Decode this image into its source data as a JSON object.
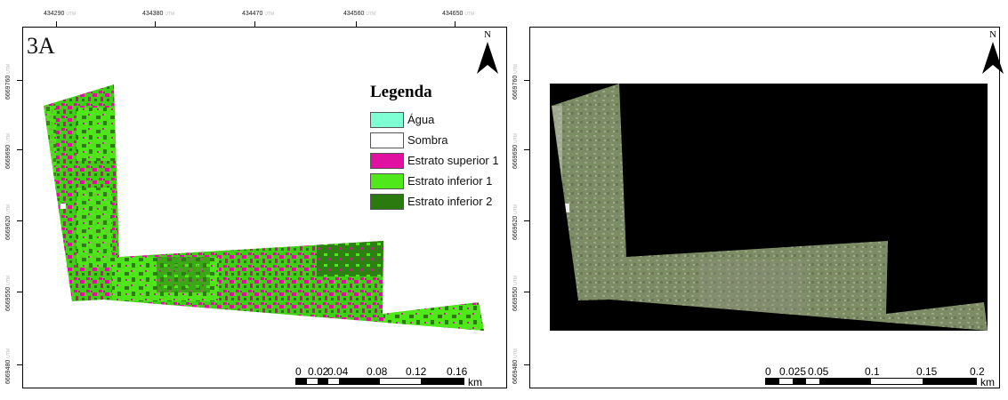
{
  "panels": {
    "left": {
      "label": "3A",
      "north": "N",
      "x_ticks": [
        "434290",
        "434380",
        "434470",
        "434560",
        "434650"
      ],
      "y_ticks": [
        "6669760",
        "6669690",
        "6669620",
        "6669550",
        "6669480"
      ],
      "coord_unit": "UTM",
      "legend": {
        "title": "Legenda",
        "items": [
          {
            "label": "Água",
            "color": "#7fffd4"
          },
          {
            "label": "Sombra",
            "color": "#ffffff"
          },
          {
            "label": "Estrato superior 1",
            "color": "#e010a0"
          },
          {
            "label": "Estrato inferior 1",
            "color": "#4fe81a"
          },
          {
            "label": "Estrato inferior 2",
            "color": "#2a7a10"
          }
        ]
      },
      "scale": {
        "labels": [
          "0",
          "0.02",
          "0.04",
          "0.08",
          "0.12",
          "0.16"
        ],
        "unit": "km"
      }
    },
    "right": {
      "north": "N",
      "y_ticks": [
        "6669760",
        "6669690",
        "6669620",
        "6669550",
        "6669480"
      ],
      "coord_unit": "UTM",
      "scale": {
        "labels": [
          "0",
          "0.025",
          "0.05",
          "0.1",
          "0.15",
          "0.2"
        ],
        "unit": "km"
      }
    }
  }
}
